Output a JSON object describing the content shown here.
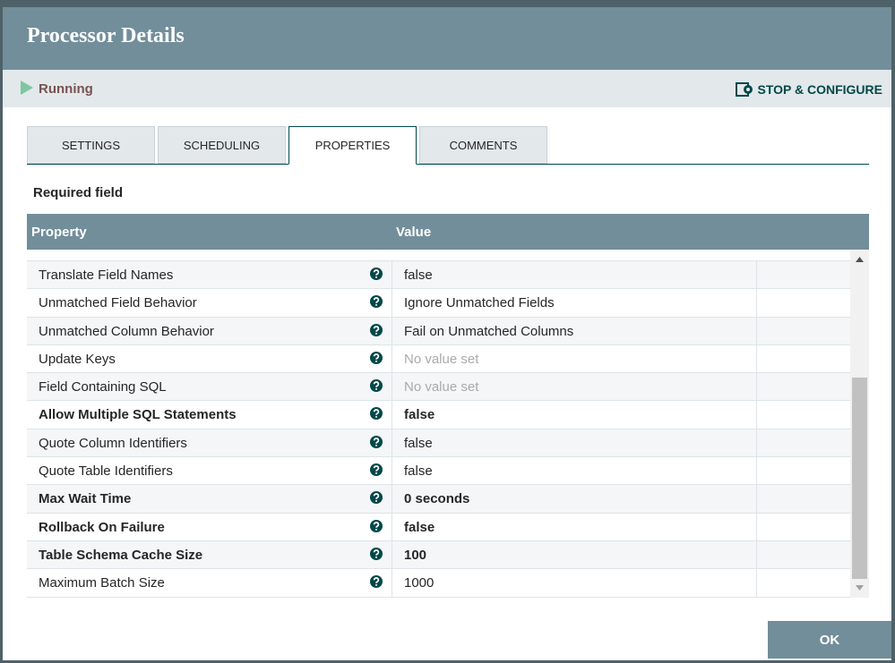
{
  "header": {
    "title": "Processor Details"
  },
  "status": {
    "label": "Running",
    "action": "STOP & CONFIGURE"
  },
  "tabs": [
    {
      "label": "SETTINGS",
      "active": false
    },
    {
      "label": "SCHEDULING",
      "active": false
    },
    {
      "label": "PROPERTIES",
      "active": true
    },
    {
      "label": "COMMENTS",
      "active": false
    }
  ],
  "note": "Required field",
  "table": {
    "columns": [
      "Property",
      "Value"
    ],
    "rows": [
      {
        "name": "Translate Field Names",
        "value": "false",
        "required": false,
        "empty": false
      },
      {
        "name": "Unmatched Field Behavior",
        "value": "Ignore Unmatched Fields",
        "required": false,
        "empty": false
      },
      {
        "name": "Unmatched Column Behavior",
        "value": "Fail on Unmatched Columns",
        "required": false,
        "empty": false
      },
      {
        "name": "Update Keys",
        "value": "No value set",
        "required": false,
        "empty": true
      },
      {
        "name": "Field Containing SQL",
        "value": "No value set",
        "required": false,
        "empty": true
      },
      {
        "name": "Allow Multiple SQL Statements",
        "value": "false",
        "required": true,
        "empty": false
      },
      {
        "name": "Quote Column Identifiers",
        "value": "false",
        "required": false,
        "empty": false
      },
      {
        "name": "Quote Table Identifiers",
        "value": "false",
        "required": false,
        "empty": false
      },
      {
        "name": "Max Wait Time",
        "value": "0 seconds",
        "required": true,
        "empty": false
      },
      {
        "name": "Rollback On Failure",
        "value": "false",
        "required": true,
        "empty": false
      },
      {
        "name": "Table Schema Cache Size",
        "value": "100",
        "required": true,
        "empty": false
      },
      {
        "name": "Maximum Batch Size",
        "value": "1000",
        "required": false,
        "empty": false
      }
    ]
  },
  "footer": {
    "ok": "OK"
  }
}
